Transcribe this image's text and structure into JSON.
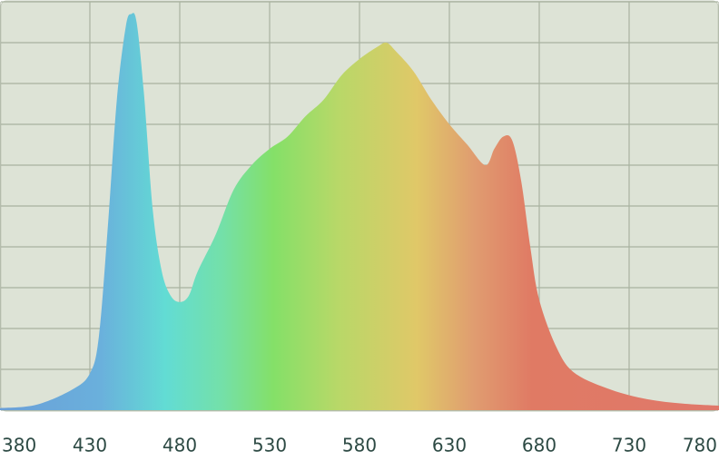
{
  "chart_data": {
    "type": "area",
    "x": [
      380,
      400,
      420,
      430,
      435,
      440,
      445,
      450,
      453,
      456,
      460,
      465,
      470,
      475,
      480,
      485,
      490,
      500,
      510,
      520,
      530,
      540,
      550,
      560,
      570,
      580,
      590,
      595,
      600,
      610,
      620,
      630,
      640,
      650,
      655,
      660,
      665,
      670,
      675,
      680,
      690,
      700,
      720,
      740,
      760,
      780
    ],
    "values": [
      0.5,
      1.3,
      5,
      9,
      18,
      45,
      76,
      94,
      97,
      95,
      78,
      49,
      34,
      28,
      26.5,
      28,
      34,
      43,
      54,
      60,
      64,
      67,
      72,
      76,
      82,
      86,
      89,
      90,
      88,
      83,
      76,
      70,
      65,
      60,
      64,
      67,
      66,
      56,
      40,
      27,
      15,
      9,
      5,
      2.7,
      1.6,
      1.1
    ],
    "xlim": [
      380,
      780
    ],
    "xticks": [
      380,
      430,
      480,
      530,
      580,
      630,
      680,
      730,
      780
    ],
    "ylim": [
      0,
      100
    ],
    "yticks": [
      0,
      10,
      20,
      30,
      40,
      50,
      60,
      70,
      80,
      90,
      100
    ],
    "grid": true
  }
}
